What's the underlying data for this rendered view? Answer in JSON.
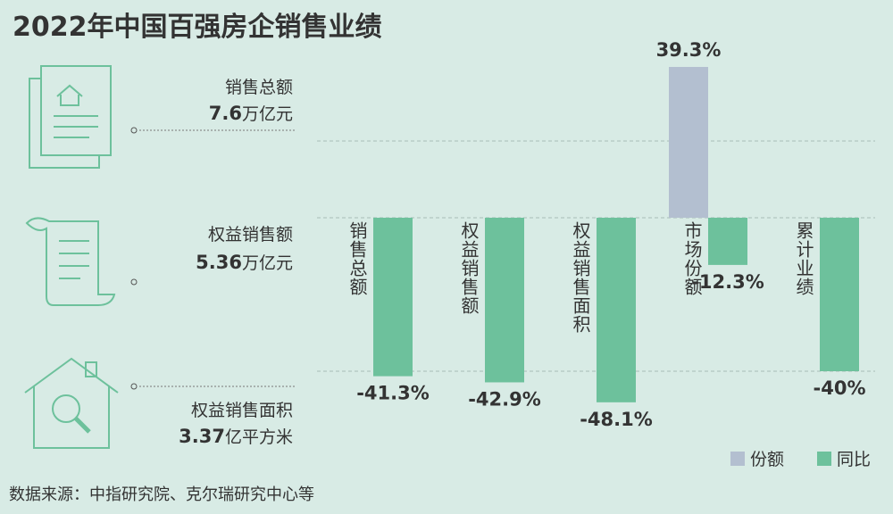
{
  "title": "2022年中国百强房企销售业绩",
  "summary": [
    {
      "label": "销售总额",
      "value": "7.6",
      "unit": "万亿元"
    },
    {
      "label": "权益销售额",
      "value": "5.36",
      "unit": "万亿元"
    },
    {
      "label": "权益销售面积",
      "value": "3.37",
      "unit": "亿平方米"
    }
  ],
  "chart_data": {
    "type": "bar",
    "categories": [
      "销售总额",
      "权益销售额",
      "权益销售面积",
      "市场份额",
      "累计业绩"
    ],
    "series": [
      {
        "name": "份额",
        "color": "#b3bfd0",
        "values": [
          null,
          null,
          null,
          39.3,
          null
        ],
        "value_labels": [
          null,
          null,
          null,
          "39.3%",
          null
        ]
      },
      {
        "name": "同比",
        "color": "#6dc19c",
        "values": [
          -41.3,
          -42.9,
          -48.1,
          -12.3,
          -40
        ],
        "value_labels": [
          "-41.3%",
          "-42.9%",
          "-48.1%",
          "-12.3%",
          "-40%"
        ]
      }
    ],
    "ylim": [
      -50,
      45
    ],
    "yticks": [
      -40,
      0,
      20
    ],
    "grid": true
  },
  "source": "数据来源：中指研究院、克尔瑞研究中心等"
}
